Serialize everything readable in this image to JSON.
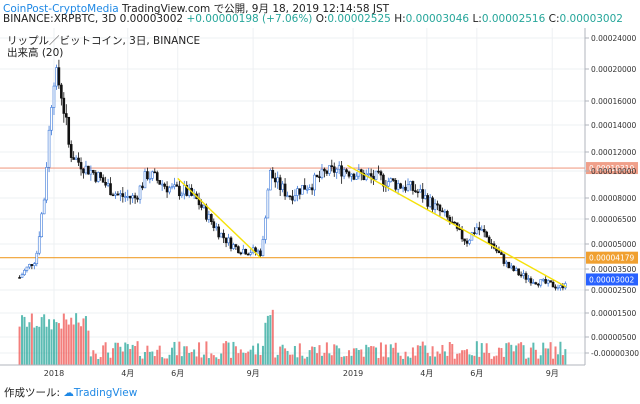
{
  "header": {
    "brand": "CoinPost-CryptoMedia",
    "published": "TradingView.com で公開, 9月 18, 2019 12:14:58 JST",
    "symbol": "BINANCE:XRPBTC, 3D",
    "last_price": "0.00003002",
    "change": "+0.00000198 (+7.06%)",
    "ohlc": {
      "o_label": "O:",
      "o": "0.00002525",
      "h_label": "H:",
      "h": "0.00003046",
      "l_label": "L:",
      "l": "0.00002516",
      "c_label": "C:",
      "c": "0.00003002"
    }
  },
  "legend": {
    "series": "リップル／ビットコイン, 3日, BINANCE",
    "volume": "出来高 (20)"
  },
  "footer": {
    "prefix": "作成ツール:",
    "tool": "TradingView"
  },
  "colors": {
    "up": "#26a69a",
    "down": "#ef5350",
    "grid": "#eef0f3",
    "trend": "#f5e20a",
    "level1": "#f0a08a",
    "level2": "#f0a030",
    "last": "#2962ff"
  },
  "chart_data": {
    "type": "candlestick",
    "y_axis": {
      "ticks": [
        "0.00024000",
        "0.00020000",
        "0.00016000",
        "0.00014000",
        "0.00012000",
        "0.00010000",
        "0.00008000",
        "0.00006500",
        "0.00005000",
        "0.00003500",
        "0.00002500",
        "0.00001500",
        "0.00000500",
        "-0.00000300"
      ],
      "tick_values": [
        0.00024,
        0.0002,
        0.00016,
        0.00014,
        0.00012,
        0.0001,
        8e-05,
        6.5e-05,
        5e-05,
        3.5e-05,
        2.5e-05,
        1.5e-05,
        5e-06,
        -3e-06
      ]
    },
    "x_axis": {
      "ticks": [
        "2018",
        "4月",
        "6月",
        "9月",
        "2019",
        "4月",
        "6月",
        "9月"
      ]
    },
    "levels": [
      {
        "label": "0.00010310",
        "value": 0.0001031,
        "color": "#f0a08a"
      },
      {
        "label": "0.00004179",
        "value": 4.179e-05,
        "color": "#f0a030"
      },
      {
        "label": "0.00003002",
        "value": 3.002e-05,
        "color": "#2962ff"
      }
    ],
    "trendlines": [
      {
        "from": [
          "2018-06-01",
          9.45e-05
        ],
        "to": [
          "2018-09-10",
          4.18e-05
        ]
      },
      {
        "from": [
          "2018-12-25",
          0.000106
        ],
        "to": [
          "2019-09-18",
          2.65e-05
        ]
      }
    ],
    "price_path": [
      [
        "2017-11-20",
        3.1e-05
      ],
      [
        "2017-12-10",
        4.1e-05
      ],
      [
        "2017-12-20",
        8e-05
      ],
      [
        "2018-01-02",
        0.000198
      ],
      [
        "2018-01-08",
        0.000178
      ],
      [
        "2018-01-20",
        0.00012
      ],
      [
        "2018-02-05",
        0.000105
      ],
      [
        "2018-02-20",
        9.8e-05
      ],
      [
        "2018-03-05",
        9e-05
      ],
      [
        "2018-03-20",
        8.2e-05
      ],
      [
        "2018-04-10",
        8e-05
      ],
      [
        "2018-04-25",
        9.8e-05
      ],
      [
        "2018-05-10",
        9.2e-05
      ],
      [
        "2018-05-25",
        8.6e-05
      ],
      [
        "2018-06-10",
        8.5e-05
      ],
      [
        "2018-06-25",
        7.8e-05
      ],
      [
        "2018-07-10",
        6.5e-05
      ],
      [
        "2018-07-25",
        5.5e-05
      ],
      [
        "2018-08-10",
        4.8e-05
      ],
      [
        "2018-08-25",
        4.6e-05
      ],
      [
        "2018-09-12",
        4.5e-05
      ],
      [
        "2018-09-21",
        9.9e-05
      ],
      [
        "2018-10-01",
        9e-05
      ],
      [
        "2018-10-15",
        8.2e-05
      ],
      [
        "2018-11-01",
        8.8e-05
      ],
      [
        "2018-11-15",
        9.2e-05
      ],
      [
        "2018-12-01",
        0.0001
      ],
      [
        "2018-12-20",
        0.000102
      ],
      [
        "2019-01-10",
        9.7e-05
      ],
      [
        "2019-01-25",
        9.5e-05
      ],
      [
        "2019-02-10",
        9.3e-05
      ],
      [
        "2019-02-25",
        9e-05
      ],
      [
        "2019-03-10",
        8.8e-05
      ],
      [
        "2019-03-25",
        8.3e-05
      ],
      [
        "2019-04-10",
        7.4e-05
      ],
      [
        "2019-04-25",
        6.6e-05
      ],
      [
        "2019-05-10",
        5.6e-05
      ],
      [
        "2019-05-20",
        5.2e-05
      ],
      [
        "2019-06-01",
        6e-05
      ],
      [
        "2019-06-10",
        5.6e-05
      ],
      [
        "2019-06-25",
        4.6e-05
      ],
      [
        "2019-07-10",
        3.6e-05
      ],
      [
        "2019-07-25",
        3.2e-05
      ],
      [
        "2019-08-10",
        2.95e-05
      ],
      [
        "2019-08-25",
        2.8e-05
      ],
      [
        "2019-09-05",
        2.7e-05
      ],
      [
        "2019-09-12",
        2.6e-05
      ],
      [
        "2019-09-18",
        3e-05
      ]
    ]
  }
}
